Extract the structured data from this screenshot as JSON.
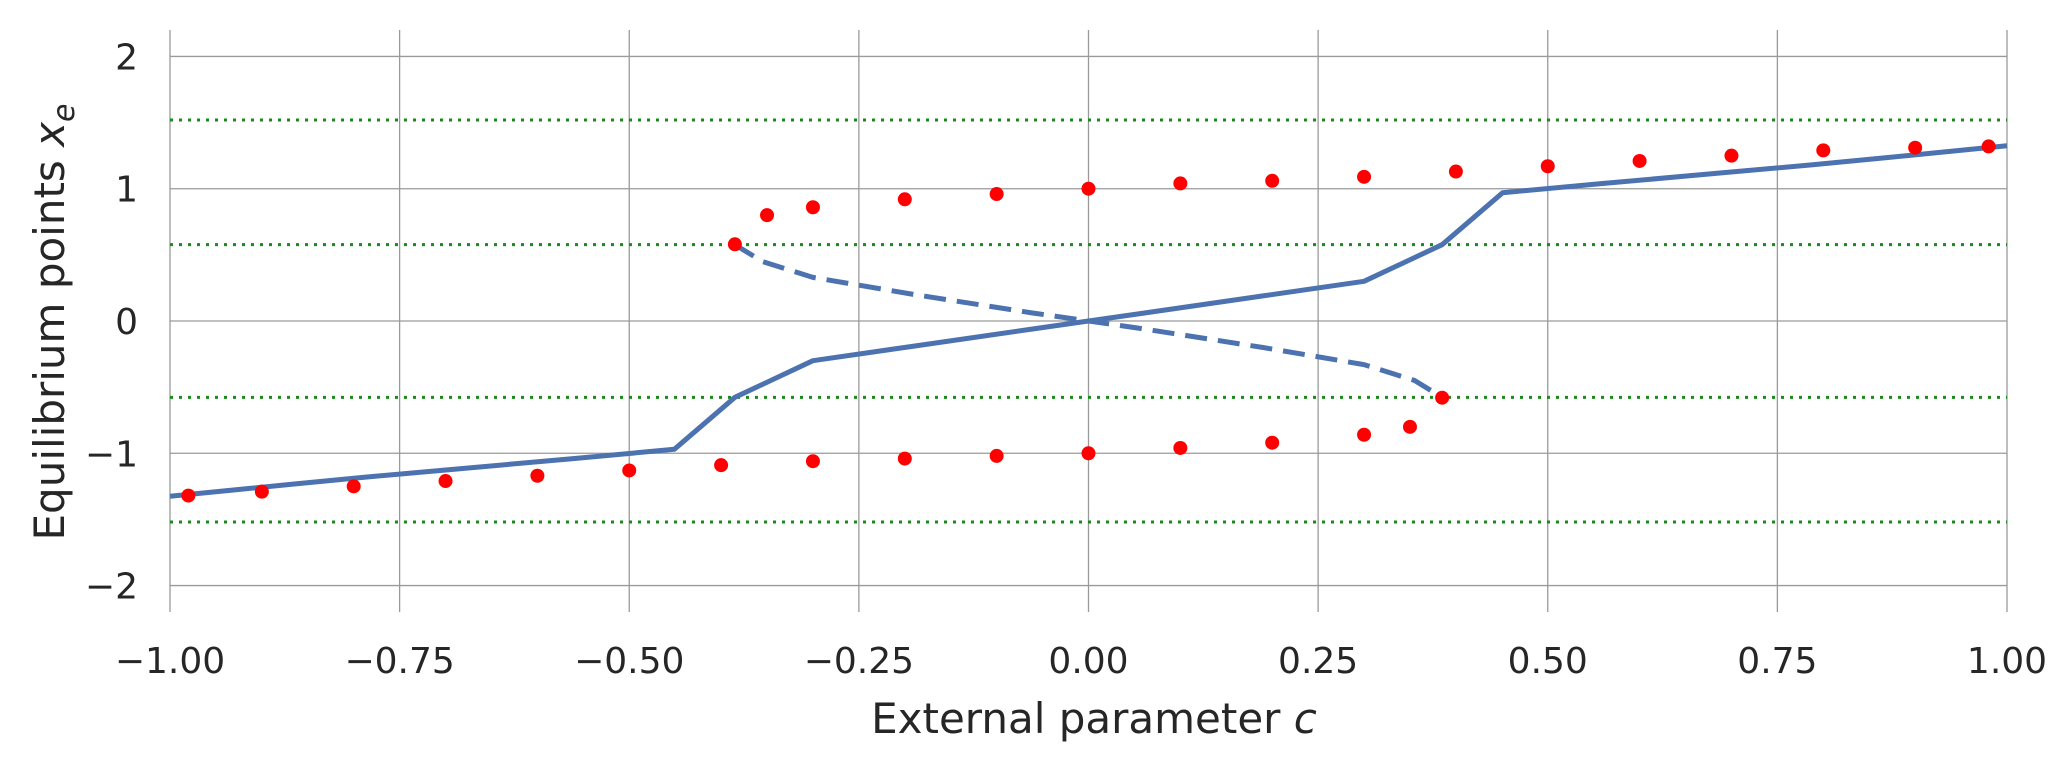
{
  "chart_data": {
    "type": "line",
    "title": "",
    "xlabel": {
      "text": "External parameter ",
      "var": "c"
    },
    "ylabel": {
      "text": "Equilibrium points ",
      "var": "x",
      "sub": "e"
    },
    "xlim": [
      -1.0,
      1.0
    ],
    "ylim": [
      -2.2,
      2.2
    ],
    "x_ticks": [
      {
        "value": -1.0,
        "label": "−1.00"
      },
      {
        "value": -0.75,
        "label": "−0.75"
      },
      {
        "value": -0.5,
        "label": "−0.50"
      },
      {
        "value": -0.25,
        "label": "−0.25"
      },
      {
        "value": 0.0,
        "label": "0.00"
      },
      {
        "value": 0.25,
        "label": "0.25"
      },
      {
        "value": 0.5,
        "label": "0.50"
      },
      {
        "value": 0.75,
        "label": "0.75"
      },
      {
        "value": 1.0,
        "label": "1.00"
      }
    ],
    "y_ticks": [
      {
        "value": 2,
        "label": "2"
      },
      {
        "value": 1,
        "label": "1"
      },
      {
        "value": 0,
        "label": "0"
      },
      {
        "value": -1,
        "label": "−1"
      },
      {
        "value": -2,
        "label": "−2"
      }
    ],
    "grid": true,
    "series": [
      {
        "style": "line",
        "color": "#4c72b0",
        "x": [
          -1.0,
          -0.964,
          -0.92,
          -0.862,
          -0.787,
          -0.689,
          -0.561,
          -0.451,
          -0.385,
          -0.3,
          -0.19,
          -0.06,
          0.0,
          0.06,
          0.19,
          0.3,
          0.385,
          0.451,
          0.561,
          0.689,
          0.787,
          0.862,
          0.92,
          0.964,
          1.0
        ],
        "y": [
          -1.325,
          -1.3,
          -1.27,
          -1.23,
          -1.18,
          -1.12,
          -1.04,
          -0.97,
          -0.577,
          -0.3,
          -0.19,
          -0.06,
          0.0,
          0.06,
          0.19,
          0.3,
          0.577,
          0.97,
          1.04,
          1.12,
          1.18,
          1.23,
          1.27,
          1.3,
          1.325
        ]
      },
      {
        "style": "dashed",
        "color": "#4c72b0",
        "x": [
          -0.385,
          -0.355,
          -0.3,
          -0.19,
          -0.06,
          0.0,
          0.06,
          0.19,
          0.3,
          0.355,
          0.385
        ],
        "y": [
          0.577,
          0.45,
          0.33,
          0.2,
          0.06,
          0.0,
          -0.06,
          -0.2,
          -0.33,
          -0.45,
          -0.577
        ]
      },
      {
        "style": "scatter",
        "color": "#ff0000",
        "x": [
          -0.98,
          -0.9,
          -0.8,
          -0.7,
          -0.6,
          -0.5,
          -0.4,
          -0.3,
          -0.2,
          -0.1,
          0.0,
          0.1,
          0.2,
          0.3,
          0.35,
          0.385,
          -0.385,
          -0.35,
          -0.3,
          -0.2,
          -0.1,
          0.0,
          0.1,
          0.2,
          0.3,
          0.4,
          0.5,
          0.6,
          0.7,
          0.8,
          0.9,
          0.98
        ],
        "y": [
          -1.32,
          -1.29,
          -1.25,
          -1.21,
          -1.17,
          -1.13,
          -1.09,
          -1.06,
          -1.04,
          -1.02,
          -1.0,
          -0.96,
          -0.92,
          -0.86,
          -0.8,
          -0.58,
          0.58,
          0.8,
          0.86,
          0.92,
          0.96,
          1.0,
          1.04,
          1.06,
          1.09,
          1.13,
          1.17,
          1.21,
          1.25,
          1.29,
          1.31,
          1.32
        ]
      }
    ],
    "reference_lines": [
      {
        "y": 1.52,
        "style": "dotted",
        "color": "#1a8a1a"
      },
      {
        "y": 0.577,
        "style": "dotted",
        "color": "#1a8a1a"
      },
      {
        "y": -0.577,
        "style": "dotted",
        "color": "#1a8a1a"
      },
      {
        "y": -1.52,
        "style": "dotted",
        "color": "#1a8a1a"
      }
    ]
  }
}
